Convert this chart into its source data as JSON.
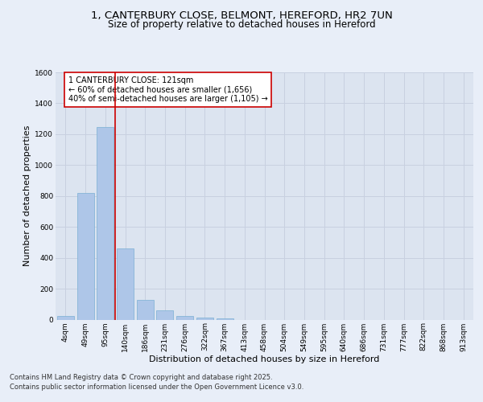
{
  "title_line1": "1, CANTERBURY CLOSE, BELMONT, HEREFORD, HR2 7UN",
  "title_line2": "Size of property relative to detached houses in Hereford",
  "xlabel": "Distribution of detached houses by size in Hereford",
  "ylabel": "Number of detached properties",
  "categories": [
    "4sqm",
    "49sqm",
    "95sqm",
    "140sqm",
    "186sqm",
    "231sqm",
    "276sqm",
    "322sqm",
    "367sqm",
    "413sqm",
    "458sqm",
    "504sqm",
    "549sqm",
    "595sqm",
    "640sqm",
    "686sqm",
    "731sqm",
    "777sqm",
    "822sqm",
    "868sqm",
    "913sqm"
  ],
  "values": [
    22,
    820,
    1245,
    460,
    130,
    60,
    22,
    15,
    10,
    0,
    0,
    0,
    0,
    0,
    0,
    0,
    0,
    0,
    0,
    0,
    0
  ],
  "bar_color": "#aec6e8",
  "bar_edge_color": "#7aafd4",
  "vline_x_index": 2.5,
  "vline_color": "#cc0000",
  "annotation_text": "1 CANTERBURY CLOSE: 121sqm\n← 60% of detached houses are smaller (1,656)\n40% of semi-detached houses are larger (1,105) →",
  "annotation_box_color": "#ffffff",
  "annotation_box_edge": "#cc0000",
  "ylim": [
    0,
    1600
  ],
  "yticks": [
    0,
    200,
    400,
    600,
    800,
    1000,
    1200,
    1400,
    1600
  ],
  "grid_color": "#c8d0e0",
  "bg_color": "#e8eef8",
  "plot_bg_color": "#dce4f0",
  "footer_line1": "Contains HM Land Registry data © Crown copyright and database right 2025.",
  "footer_line2": "Contains public sector information licensed under the Open Government Licence v3.0.",
  "title_fontsize": 9.5,
  "subtitle_fontsize": 8.5,
  "axis_label_fontsize": 8,
  "tick_fontsize": 6.5,
  "annotation_fontsize": 7,
  "footer_fontsize": 6
}
